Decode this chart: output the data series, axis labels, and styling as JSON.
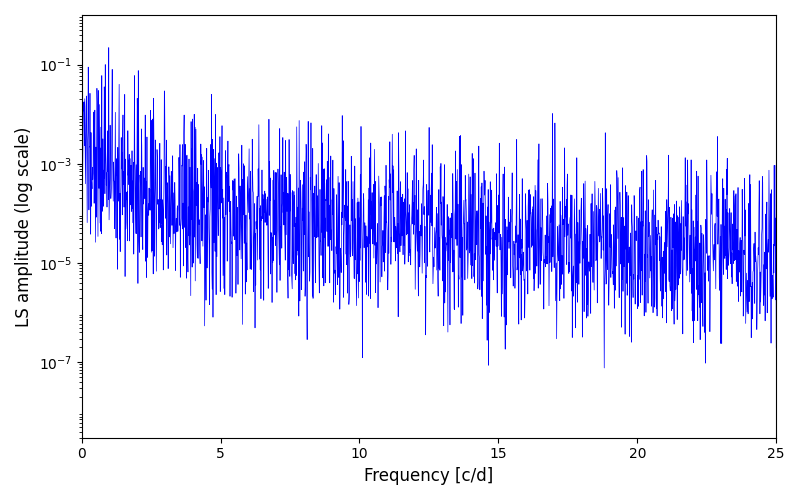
{
  "title": "",
  "xlabel": "Frequency [c/d]",
  "ylabel": "LS amplitude (log scale)",
  "xlim": [
    0,
    25
  ],
  "ylim": [
    3e-09,
    1.0
  ],
  "yticks": [
    1e-07,
    1e-05,
    0.001,
    0.1
  ],
  "line_color": "#0000ff",
  "line_width": 0.5,
  "figsize": [
    8.0,
    5.0
  ],
  "dpi": 100,
  "freq_max": 25.0,
  "n_points": 2000,
  "seed": 137,
  "background_color": "#ffffff"
}
